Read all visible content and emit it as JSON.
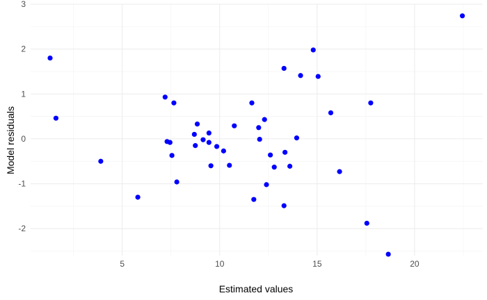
{
  "chart_data": {
    "type": "scatter",
    "title": "",
    "xlabel": "Estimated values",
    "ylabel": "Model residuals",
    "xlim": [
      0.3,
      23.5
    ],
    "ylim": [
      -2.6,
      3.0
    ],
    "x_ticks": [
      5,
      10,
      15,
      20
    ],
    "y_ticks": [
      -2,
      -1,
      0,
      1,
      2,
      3
    ],
    "x_tick_labels": [
      "5",
      "10",
      "15",
      "20"
    ],
    "y_tick_labels": [
      "-2",
      "-1",
      "0",
      "1",
      "2",
      "3"
    ],
    "grid": true,
    "legend": "none",
    "point_color": "#0000ff",
    "points": [
      {
        "x": 1.3,
        "y": 1.8
      },
      {
        "x": 1.6,
        "y": 0.46
      },
      {
        "x": 3.9,
        "y": -0.5
      },
      {
        "x": 5.8,
        "y": -1.3
      },
      {
        "x": 7.2,
        "y": 0.93
      },
      {
        "x": 7.3,
        "y": -0.06
      },
      {
        "x": 7.45,
        "y": -0.08
      },
      {
        "x": 7.55,
        "y": -0.37
      },
      {
        "x": 7.65,
        "y": 0.8
      },
      {
        "x": 7.8,
        "y": -0.96
      },
      {
        "x": 8.7,
        "y": 0.1
      },
      {
        "x": 8.75,
        "y": -0.15
      },
      {
        "x": 8.85,
        "y": 0.33
      },
      {
        "x": 9.15,
        "y": -0.02
      },
      {
        "x": 9.45,
        "y": 0.13
      },
      {
        "x": 9.45,
        "y": -0.08
      },
      {
        "x": 9.55,
        "y": -0.6
      },
      {
        "x": 9.85,
        "y": -0.17
      },
      {
        "x": 10.2,
        "y": -0.27
      },
      {
        "x": 10.5,
        "y": -0.59
      },
      {
        "x": 10.75,
        "y": 0.29
      },
      {
        "x": 11.65,
        "y": 0.8
      },
      {
        "x": 11.75,
        "y": -1.35
      },
      {
        "x": 12.0,
        "y": 0.25
      },
      {
        "x": 12.05,
        "y": -0.01
      },
      {
        "x": 12.3,
        "y": 0.43
      },
      {
        "x": 12.4,
        "y": -1.02
      },
      {
        "x": 12.6,
        "y": -0.36
      },
      {
        "x": 12.8,
        "y": -0.63
      },
      {
        "x": 13.3,
        "y": 1.57
      },
      {
        "x": 13.3,
        "y": -1.49
      },
      {
        "x": 13.35,
        "y": -0.3
      },
      {
        "x": 13.6,
        "y": -0.61
      },
      {
        "x": 13.95,
        "y": 0.02
      },
      {
        "x": 14.15,
        "y": 1.41
      },
      {
        "x": 14.8,
        "y": 1.98
      },
      {
        "x": 15.05,
        "y": 1.39
      },
      {
        "x": 15.7,
        "y": 0.58
      },
      {
        "x": 16.15,
        "y": -0.73
      },
      {
        "x": 17.55,
        "y": -1.88
      },
      {
        "x": 17.75,
        "y": 0.8
      },
      {
        "x": 18.65,
        "y": -2.57
      },
      {
        "x": 22.45,
        "y": 2.74
      }
    ]
  }
}
